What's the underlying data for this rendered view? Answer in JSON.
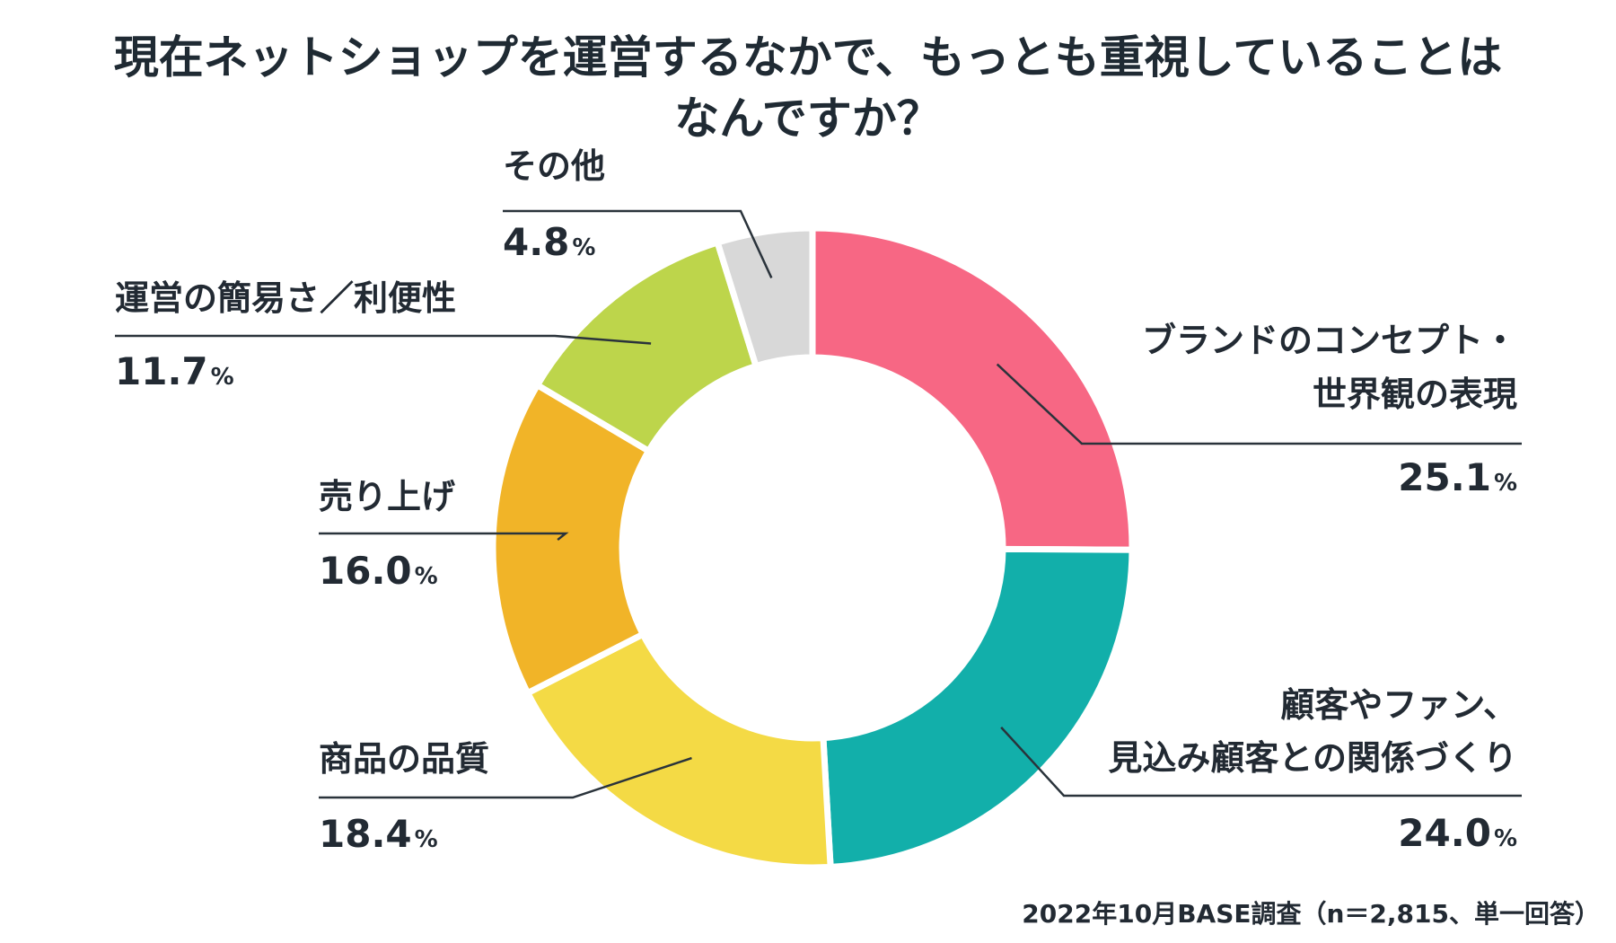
{
  "title": {
    "line1": "現在ネットショップを運営するなかで、もっとも重視していることは",
    "line2": "なんですか？"
  },
  "chart_data": {
    "type": "pie",
    "style": "donut",
    "title": "現在ネットショップを運営するなかで、もっとも重視していることはなんですか？",
    "unit": "%",
    "slices": [
      {
        "label_lines": [
          "ブランドのコンセプト・",
          "世界観の表現"
        ],
        "value": 25.1,
        "color": "#f76784"
      },
      {
        "label_lines": [
          "顧客やファン、",
          "見込み顧客との関係づくり"
        ],
        "value": 24.0,
        "color": "#12afaa"
      },
      {
        "label_lines": [
          "商品の品質"
        ],
        "value": 18.4,
        "color": "#f4da45"
      },
      {
        "label_lines": [
          "売り上げ"
        ],
        "value": 16.0,
        "color": "#f1b428"
      },
      {
        "label_lines": [
          "運営の簡易さ／利便性"
        ],
        "value": 11.7,
        "color": "#bdd54b"
      },
      {
        "label_lines": [
          "その他"
        ],
        "value": 4.8,
        "color": "#d8d8d8"
      }
    ]
  },
  "footnote": "2022年10月BASE調査（n＝2,815、単一回答）"
}
